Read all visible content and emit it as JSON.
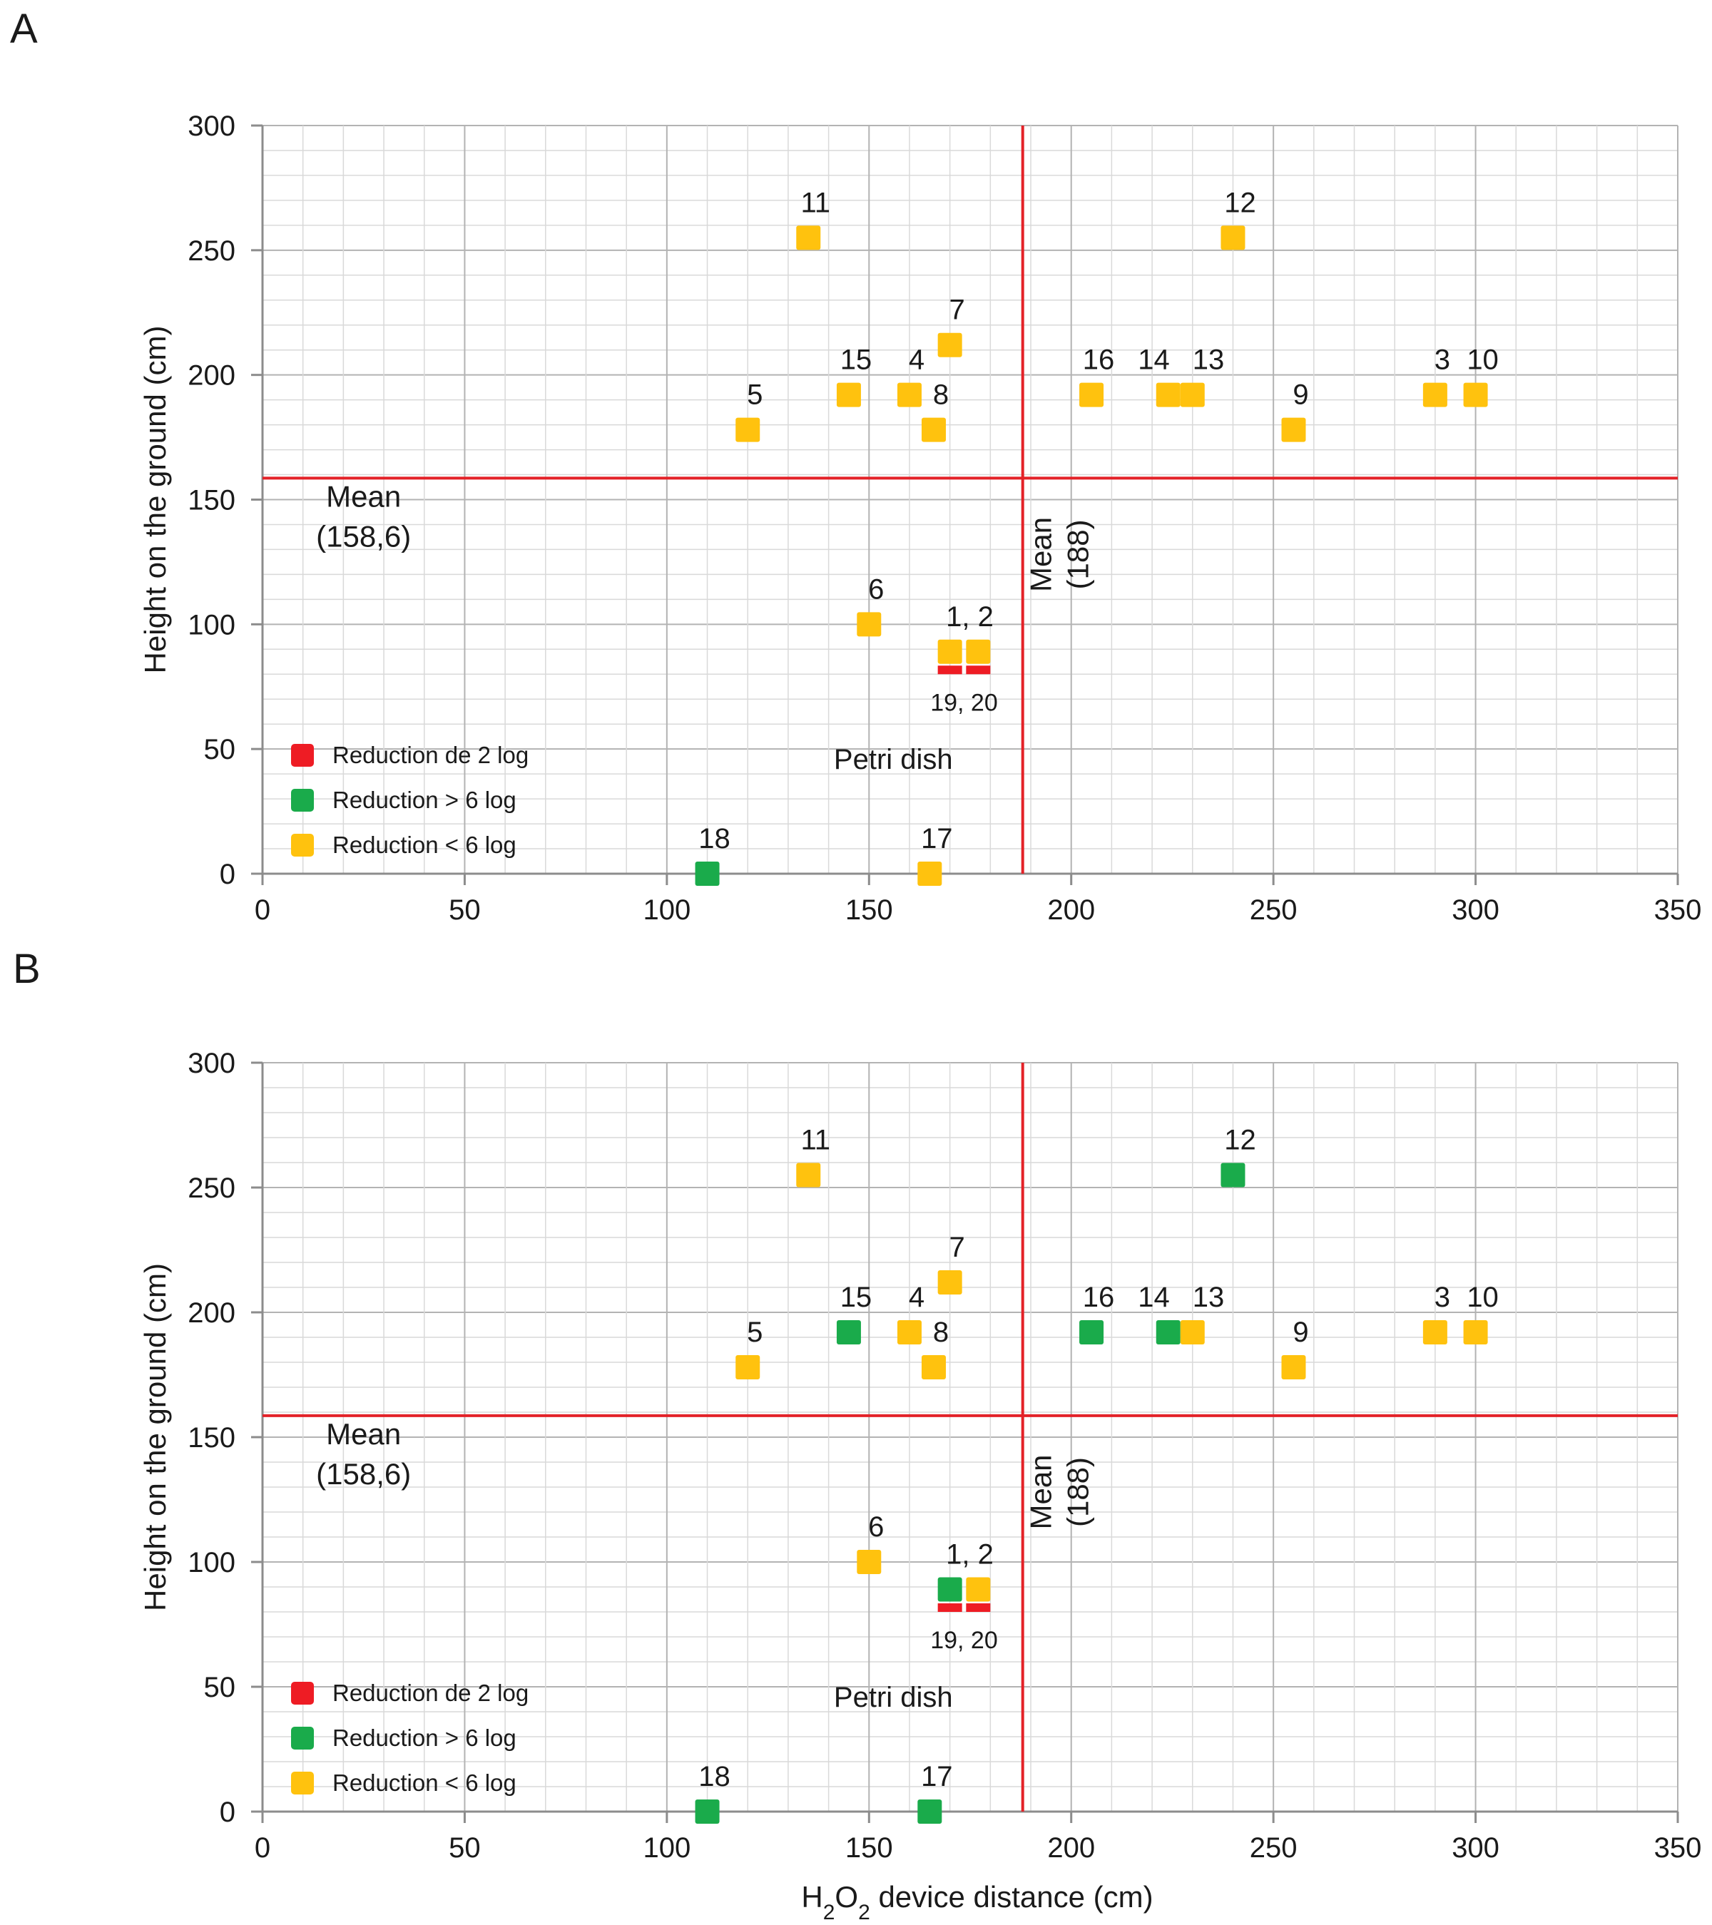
{
  "chart_data": [
    {
      "panel": "A",
      "type": "scatter",
      "xlabel_parts": [
        "H",
        "2",
        "O",
        "2",
        " device distance (cm)"
      ],
      "ylabel": "Height on the ground (cm)",
      "xlim": [
        0,
        350
      ],
      "ylim": [
        0,
        300
      ],
      "xticks": [
        "0",
        "50",
        "100",
        "150",
        "200",
        "250",
        "300",
        "350"
      ],
      "yticks": [
        "0",
        "50",
        "100",
        "150",
        "200",
        "250",
        "300"
      ],
      "grid": true,
      "mean_x": {
        "value": 188,
        "label_lines": [
          "Mean",
          "(188)"
        ]
      },
      "mean_y": {
        "value": 158.6,
        "label_lines": [
          "Mean",
          "(158,6)"
        ]
      },
      "legend": [
        {
          "key": "red",
          "label": "Reduction de 2 log"
        },
        {
          "key": "green",
          "label": "Reduction > 6 log"
        },
        {
          "key": "yellow",
          "label": "Reduction < 6 log"
        }
      ],
      "points": [
        {
          "label": "1, 2",
          "x": 170,
          "y": 89,
          "color": "yellow"
        },
        {
          "label": "",
          "x": 177,
          "y": 89,
          "color": "yellow"
        },
        {
          "label": "3",
          "x": 290,
          "y": 192,
          "color": "yellow"
        },
        {
          "label": "10",
          "x": 300,
          "y": 192,
          "color": "yellow"
        },
        {
          "label": "4",
          "x": 160,
          "y": 192,
          "color": "yellow"
        },
        {
          "label": "15",
          "x": 145,
          "y": 192,
          "color": "yellow"
        },
        {
          "label": "5",
          "x": 120,
          "y": 178,
          "color": "yellow"
        },
        {
          "label": "6",
          "x": 150,
          "y": 100,
          "color": "yellow"
        },
        {
          "label": "7",
          "x": 170,
          "y": 212,
          "color": "yellow"
        },
        {
          "label": "8",
          "x": 166,
          "y": 178,
          "color": "yellow"
        },
        {
          "label": "9",
          "x": 255,
          "y": 178,
          "color": "yellow"
        },
        {
          "label": "11",
          "x": 135,
          "y": 255,
          "color": "yellow"
        },
        {
          "label": "12",
          "x": 240,
          "y": 255,
          "color": "yellow"
        },
        {
          "label": "14",
          "x": 224,
          "y": 192,
          "color": "yellow"
        },
        {
          "label": "13",
          "x": 230,
          "y": 192,
          "color": "yellow"
        },
        {
          "label": "16",
          "x": 205,
          "y": 192,
          "color": "yellow"
        },
        {
          "label": "17",
          "x": 165,
          "y": 0,
          "color": "yellow"
        },
        {
          "label": "18",
          "x": 110,
          "y": 0,
          "color": "green"
        }
      ],
      "petri": {
        "label": "Petri dish",
        "sublabel": "19, 20",
        "dishes": [
          {
            "x": 170,
            "y": 82,
            "color": "red"
          },
          {
            "x": 177,
            "y": 82,
            "color": "red"
          }
        ]
      }
    },
    {
      "panel": "B",
      "type": "scatter",
      "xlabel_parts": [
        "H",
        "2",
        "O",
        "2",
        " device distance (cm)"
      ],
      "ylabel": "Height on the ground (cm)",
      "xlim": [
        0,
        350
      ],
      "ylim": [
        0,
        300
      ],
      "xticks": [
        "0",
        "50",
        "100",
        "150",
        "200",
        "250",
        "300",
        "350"
      ],
      "yticks": [
        "0",
        "50",
        "100",
        "150",
        "200",
        "250",
        "300"
      ],
      "grid": true,
      "mean_x": {
        "value": 188,
        "label_lines": [
          "Mean",
          "(188)"
        ]
      },
      "mean_y": {
        "value": 158.6,
        "label_lines": [
          "Mean",
          "(158,6)"
        ]
      },
      "legend": [
        {
          "key": "red",
          "label": "Reduction de 2 log"
        },
        {
          "key": "green",
          "label": "Reduction > 6 log"
        },
        {
          "key": "yellow",
          "label": "Reduction < 6 log"
        }
      ],
      "points": [
        {
          "label": "1, 2",
          "x": 170,
          "y": 89,
          "color": "green"
        },
        {
          "label": "",
          "x": 177,
          "y": 89,
          "color": "yellow"
        },
        {
          "label": "3",
          "x": 290,
          "y": 192,
          "color": "yellow"
        },
        {
          "label": "10",
          "x": 300,
          "y": 192,
          "color": "yellow"
        },
        {
          "label": "4",
          "x": 160,
          "y": 192,
          "color": "yellow"
        },
        {
          "label": "15",
          "x": 145,
          "y": 192,
          "color": "green"
        },
        {
          "label": "5",
          "x": 120,
          "y": 178,
          "color": "yellow"
        },
        {
          "label": "6",
          "x": 150,
          "y": 100,
          "color": "yellow"
        },
        {
          "label": "7",
          "x": 170,
          "y": 212,
          "color": "yellow"
        },
        {
          "label": "8",
          "x": 166,
          "y": 178,
          "color": "yellow"
        },
        {
          "label": "9",
          "x": 255,
          "y": 178,
          "color": "yellow"
        },
        {
          "label": "11",
          "x": 135,
          "y": 255,
          "color": "yellow"
        },
        {
          "label": "12",
          "x": 240,
          "y": 255,
          "color": "green"
        },
        {
          "label": "14",
          "x": 224,
          "y": 192,
          "color": "green"
        },
        {
          "label": "13",
          "x": 230,
          "y": 192,
          "color": "yellow"
        },
        {
          "label": "16",
          "x": 205,
          "y": 192,
          "color": "green"
        },
        {
          "label": "17",
          "x": 165,
          "y": 0,
          "color": "green"
        },
        {
          "label": "18",
          "x": 110,
          "y": 0,
          "color": "green"
        }
      ],
      "petri": {
        "label": "Petri dish",
        "sublabel": "19, 20",
        "dishes": [
          {
            "x": 170,
            "y": 82,
            "color": "red"
          },
          {
            "x": 177,
            "y": 82,
            "color": "red"
          }
        ]
      }
    }
  ],
  "colors": {
    "red": "#ee1c24",
    "green": "#1aab4b",
    "yellow": "#ffc20e",
    "mean_line": "#e32228",
    "grid_major": "#b3b3b3",
    "grid_minor": "#d9d9d9",
    "axis": "#8c8c8c"
  }
}
